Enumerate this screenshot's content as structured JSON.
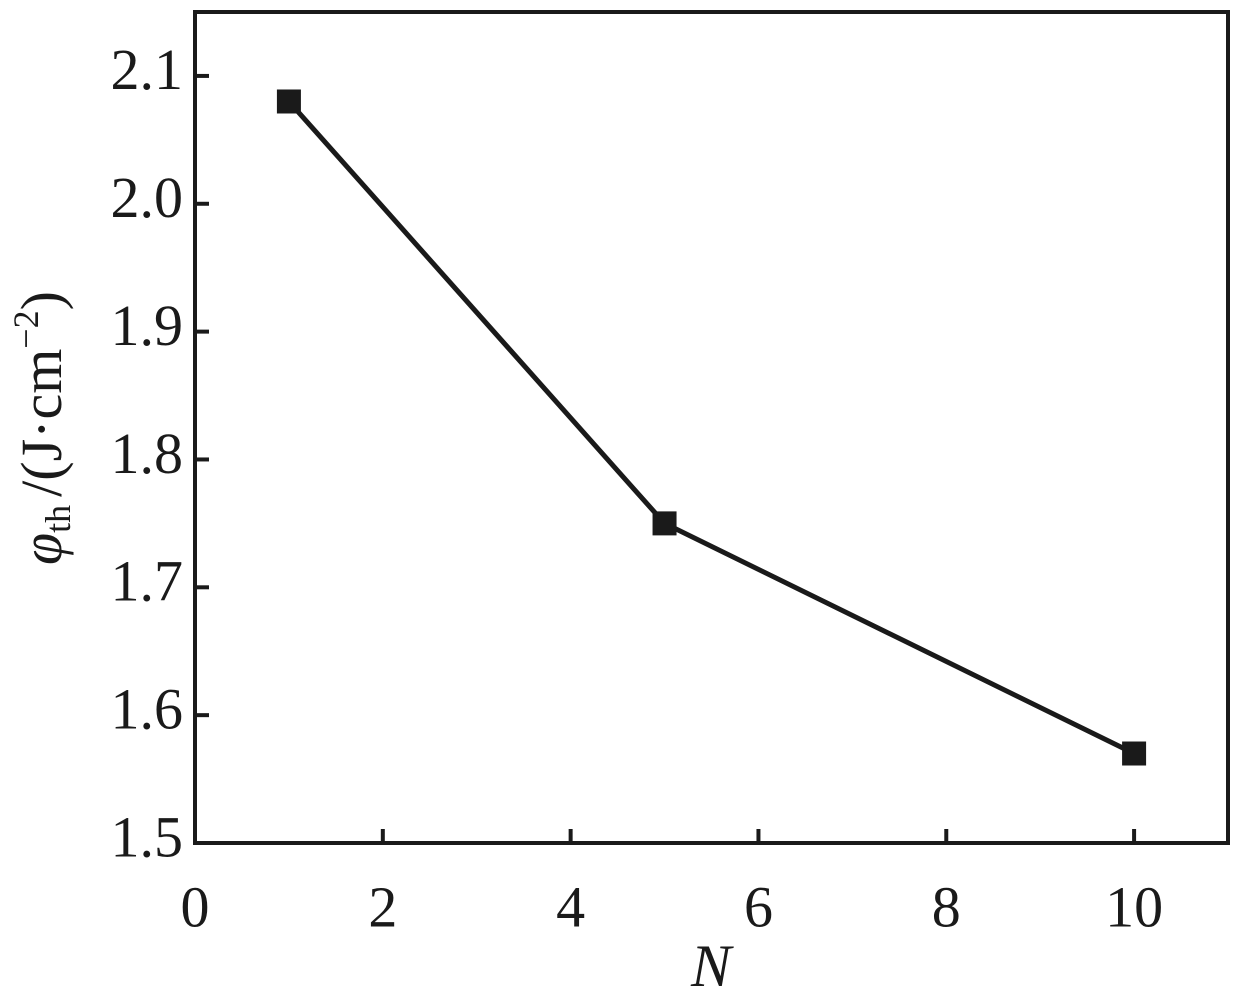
{
  "chart_data": {
    "type": "line",
    "x_label": "N",
    "y_label": {
      "symbol": "φ",
      "subscript": "th",
      "unit": "/(J·cm",
      "exponent": "−2",
      "close": ")"
    },
    "x": [
      1,
      5,
      10
    ],
    "series": [
      {
        "color": "#1a1a1a",
        "values": [
          2.08,
          1.75,
          1.57
        ]
      }
    ],
    "xlim": [
      0,
      11
    ],
    "xticks": [
      0,
      2,
      4,
      6,
      8,
      10
    ],
    "ylim": [
      1.5,
      2.15
    ],
    "yticks": [
      1.5,
      1.6,
      1.7,
      1.8,
      1.9,
      {
        "value": 2,
        "label": "2.0"
      },
      2.1
    ],
    "grid": false
  }
}
